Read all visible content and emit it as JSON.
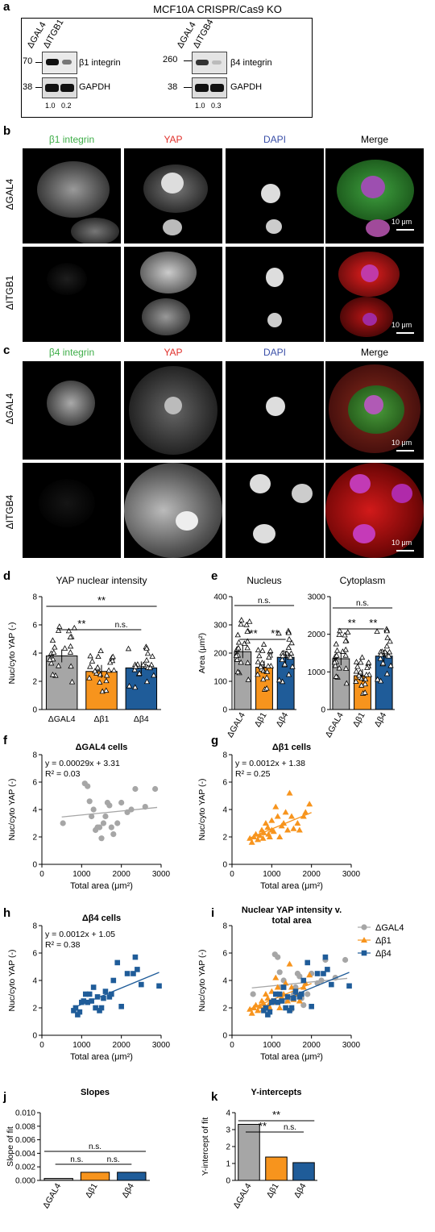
{
  "panel_a": {
    "label": "a",
    "title": "MCF10A CRISPR/Cas9 KO",
    "left_blot": {
      "lanes": [
        "ΔGAL4",
        "ΔITGB1"
      ],
      "markers": [
        "70",
        "38"
      ],
      "bands": [
        "β1 integrin",
        "GAPDH"
      ],
      "quant": [
        "1.0",
        "0.2"
      ]
    },
    "right_blot": {
      "lanes": [
        "ΔGAL4",
        "ΔITGB4"
      ],
      "markers": [
        "260",
        "38"
      ],
      "bands": [
        "β4 integrin",
        "GAPDH"
      ],
      "quant": [
        "1.0",
        "0.3"
      ]
    }
  },
  "panel_b": {
    "label": "b",
    "headers": [
      "β1 integrin",
      "YAP",
      "DAPI",
      "Merge"
    ],
    "header_colors": [
      "#3fae49",
      "#e0302b",
      "#3a4fa8",
      "#000000"
    ],
    "rows": [
      "ΔGAL4",
      "ΔITGB1"
    ],
    "scalebar": "10 μm"
  },
  "panel_c": {
    "label": "c",
    "headers": [
      "β4 integrin",
      "YAP",
      "DAPI",
      "Merge"
    ],
    "header_colors": [
      "#3fae49",
      "#e0302b",
      "#3a4fa8",
      "#000000"
    ],
    "rows": [
      "ΔGAL4",
      "ΔITGB4"
    ],
    "scalebar": "10 μm"
  },
  "chart_data": [
    {
      "id": "d",
      "type": "bar",
      "title": "YAP nuclear intensity",
      "ylabel": "Nuc/cyto YAP (-)",
      "ylim": [
        0,
        8
      ],
      "yticks": [
        0,
        2,
        4,
        6,
        8
      ],
      "categories": [
        "ΔGAL4",
        "Δβ1",
        "Δβ4"
      ],
      "values": [
        3.8,
        2.7,
        2.95
      ],
      "colors": [
        "#a6a6a6",
        "#f7941d",
        "#1f5c99"
      ],
      "significance": [
        {
          "pair": [
            "ΔGAL4",
            "Δβ1"
          ],
          "label": "**"
        },
        {
          "pair": [
            "Δβ1",
            "Δβ4"
          ],
          "label": "n.s."
        },
        {
          "pair": [
            "ΔGAL4",
            "Δβ4"
          ],
          "label": "**"
        }
      ]
    },
    {
      "id": "e1",
      "type": "bar",
      "title": "Nucleus",
      "ylabel": "Area (μm²)",
      "ylim": [
        0,
        400
      ],
      "yticks": [
        0,
        100,
        200,
        300,
        400
      ],
      "categories": [
        "ΔGAL4",
        "Δβ1",
        "Δβ4"
      ],
      "values": [
        205,
        150,
        185
      ],
      "colors": [
        "#a6a6a6",
        "#f7941d",
        "#1f5c99"
      ],
      "significance": [
        {
          "pair": [
            "ΔGAL4",
            "Δβ1"
          ],
          "label": "**"
        },
        {
          "pair": [
            "Δβ1",
            "Δβ4"
          ],
          "label": "**"
        },
        {
          "pair": [
            "ΔGAL4",
            "Δβ4"
          ],
          "label": "n.s."
        }
      ]
    },
    {
      "id": "e2",
      "type": "bar",
      "title": "Cytoplasm",
      "ylim": [
        0,
        3000
      ],
      "yticks": [
        0,
        1000,
        2000,
        3000
      ],
      "categories": [
        "ΔGAL4",
        "Δβ1",
        "Δβ4"
      ],
      "values": [
        1350,
        900,
        1420
      ],
      "colors": [
        "#a6a6a6",
        "#f7941d",
        "#1f5c99"
      ],
      "significance": [
        {
          "pair": [
            "ΔGAL4",
            "Δβ1"
          ],
          "label": "**"
        },
        {
          "pair": [
            "Δβ1",
            "Δβ4"
          ],
          "label": "**"
        },
        {
          "pair": [
            "ΔGAL4",
            "Δβ4"
          ],
          "label": "n.s."
        }
      ]
    },
    {
      "id": "f",
      "type": "scatter",
      "title": "ΔGAL4 cells",
      "xlabel": "Total area (μm²)",
      "ylabel": "Nuc/cyto YAP (-)",
      "xlim": [
        0,
        3000
      ],
      "ylim": [
        0,
        8
      ],
      "xticks": [
        0,
        1000,
        2000,
        3000
      ],
      "yticks": [
        0,
        2,
        4,
        6,
        8
      ],
      "equation": "y = 0.00029x + 3.31",
      "r2": "R² = 0.03",
      "color": "#a6a6a6",
      "marker": "circle",
      "fit": {
        "slope": 0.00029,
        "intercept": 3.31,
        "x": [
          500,
          2900
        ]
      },
      "points": [
        [
          530,
          3.0
        ],
        [
          1080,
          5.9
        ],
        [
          1150,
          5.7
        ],
        [
          1200,
          4.6
        ],
        [
          1250,
          3.5
        ],
        [
          1300,
          4.0
        ],
        [
          1350,
          2.5
        ],
        [
          1400,
          2.7
        ],
        [
          1450,
          2.7
        ],
        [
          1500,
          1.9
        ],
        [
          1550,
          3.0
        ],
        [
          1600,
          3.5
        ],
        [
          1650,
          4.5
        ],
        [
          1700,
          4.3
        ],
        [
          1750,
          2.7
        ],
        [
          1800,
          2.2
        ],
        [
          1900,
          3.0
        ],
        [
          2000,
          4.5
        ],
        [
          2150,
          3.8
        ],
        [
          2250,
          4.0
        ],
        [
          2350,
          5.5
        ],
        [
          2600,
          4.2
        ],
        [
          2850,
          5.5
        ]
      ]
    },
    {
      "id": "g",
      "type": "scatter",
      "title": "Δβ1 cells",
      "xlabel": "Total area (μm²)",
      "ylabel": "Nuc/cyto YAP (-)",
      "xlim": [
        0,
        3000
      ],
      "ylim": [
        0,
        8
      ],
      "xticks": [
        0,
        1000,
        2000,
        3000
      ],
      "yticks": [
        0,
        2,
        4,
        6,
        8
      ],
      "equation": "y = 0.0012x + 1.38",
      "r2": "R² = 0.25",
      "color": "#f7941d",
      "marker": "triangle",
      "fit": {
        "slope": 0.0012,
        "intercept": 1.38,
        "x": [
          400,
          2000
        ]
      },
      "points": [
        [
          450,
          1.9
        ],
        [
          500,
          1.6
        ],
        [
          550,
          2.0
        ],
        [
          600,
          2.2
        ],
        [
          650,
          1.8
        ],
        [
          700,
          2.1
        ],
        [
          750,
          2.5
        ],
        [
          780,
          1.9
        ],
        [
          800,
          2.3
        ],
        [
          850,
          3.0
        ],
        [
          900,
          2.7
        ],
        [
          920,
          2.2
        ],
        [
          950,
          2.0
        ],
        [
          1000,
          3.2
        ],
        [
          1000,
          2.5
        ],
        [
          1050,
          2.4
        ],
        [
          1100,
          4.2
        ],
        [
          1150,
          3.5
        ],
        [
          1200,
          2.0
        ],
        [
          1250,
          2.8
        ],
        [
          1300,
          3.0
        ],
        [
          1350,
          3.8
        ],
        [
          1400,
          2.5
        ],
        [
          1450,
          5.2
        ],
        [
          1500,
          3.5
        ],
        [
          1550,
          2.6
        ],
        [
          1650,
          3.0
        ],
        [
          1700,
          2.5
        ],
        [
          1800,
          3.5
        ],
        [
          1850,
          3.8
        ],
        [
          1950,
          4.4
        ]
      ]
    },
    {
      "id": "h",
      "type": "scatter",
      "title": "Δβ4 cells",
      "xlabel": "Total area (μm²)",
      "ylabel": "Nuc/cyto YAP (-)",
      "xlim": [
        0,
        3000
      ],
      "ylim": [
        0,
        8
      ],
      "xticks": [
        0,
        1000,
        2000,
        3000
      ],
      "yticks": [
        0,
        2,
        4,
        6,
        8
      ],
      "equation": "y = 0.0012x + 1.05",
      "r2": "R² = 0.38",
      "color": "#1f5c99",
      "marker": "square",
      "fit": {
        "slope": 0.0012,
        "intercept": 1.05,
        "x": [
          800,
          2950
        ]
      },
      "points": [
        [
          800,
          1.8
        ],
        [
          850,
          2.0
        ],
        [
          900,
          1.5
        ],
        [
          950,
          1.7
        ],
        [
          1000,
          2.4
        ],
        [
          1050,
          2.5
        ],
        [
          1100,
          3.0
        ],
        [
          1150,
          2.4
        ],
        [
          1200,
          3.0
        ],
        [
          1250,
          2.5
        ],
        [
          1300,
          3.5
        ],
        [
          1350,
          2.0
        ],
        [
          1400,
          2.8
        ],
        [
          1450,
          1.8
        ],
        [
          1500,
          2.0
        ],
        [
          1550,
          2.7
        ],
        [
          1600,
          3.2
        ],
        [
          1700,
          2.8
        ],
        [
          1750,
          3.0
        ],
        [
          1800,
          4.0
        ],
        [
          1900,
          5.3
        ],
        [
          2000,
          2.1
        ],
        [
          2150,
          4.5
        ],
        [
          2300,
          4.5
        ],
        [
          2350,
          5.7
        ],
        [
          2400,
          4.8
        ],
        [
          2500,
          3.7
        ],
        [
          2950,
          3.6
        ]
      ]
    },
    {
      "id": "i",
      "type": "scatter",
      "title": "Nuclear YAP intensity v.\ntotal area",
      "xlabel": "Total area (μm²)",
      "ylabel": "Nuc/cyto YAP (-)",
      "xlim": [
        0,
        3000
      ],
      "ylim": [
        0,
        8
      ],
      "xticks": [
        0,
        1000,
        2000,
        3000
      ],
      "yticks": [
        0,
        2,
        4,
        6,
        8
      ],
      "legend": [
        "ΔGAL4",
        "Δβ1",
        "Δβ4"
      ],
      "legend_position": "top-right",
      "series_ref": [
        "f",
        "g",
        "h"
      ]
    },
    {
      "id": "j",
      "type": "bar",
      "title": "Slopes",
      "ylabel": "Slope of fit",
      "ylim": [
        0,
        0.01
      ],
      "yticks": [
        0,
        0.002,
        0.004,
        0.006,
        0.008,
        0.01
      ],
      "ytick_labels": [
        "0.000",
        "0.002",
        "0.004",
        "0.006",
        "0.008",
        "0.010"
      ],
      "categories": [
        "ΔGAL4",
        "Δβ1",
        "Δβ4"
      ],
      "values": [
        0.00029,
        0.0012,
        0.0012
      ],
      "colors": [
        "#a6a6a6",
        "#f7941d",
        "#1f5c99"
      ],
      "significance": [
        {
          "pair": [
            "ΔGAL4",
            "Δβ1"
          ],
          "label": "n.s."
        },
        {
          "pair": [
            "Δβ1",
            "Δβ4"
          ],
          "label": "n.s."
        },
        {
          "pair": [
            "ΔGAL4",
            "Δβ4"
          ],
          "label": "n.s."
        }
      ]
    },
    {
      "id": "k",
      "type": "bar",
      "title": "Y-intercepts",
      "ylabel": "Y-intercept of fit",
      "ylim": [
        0,
        4
      ],
      "yticks": [
        0,
        1,
        2,
        3,
        4
      ],
      "categories": [
        "ΔGAL4",
        "Δβ1",
        "Δβ4"
      ],
      "values": [
        3.31,
        1.38,
        1.05
      ],
      "colors": [
        "#a6a6a6",
        "#f7941d",
        "#1f5c99"
      ],
      "significance": [
        {
          "pair": [
            "ΔGAL4",
            "Δβ1"
          ],
          "label": "**"
        },
        {
          "pair": [
            "Δβ1",
            "Δβ4"
          ],
          "label": "n.s."
        },
        {
          "pair": [
            "ΔGAL4",
            "Δβ4"
          ],
          "label": "**"
        }
      ]
    }
  ],
  "panel_labels": [
    "d",
    "e",
    "f",
    "g",
    "h",
    "i",
    "j",
    "k"
  ]
}
